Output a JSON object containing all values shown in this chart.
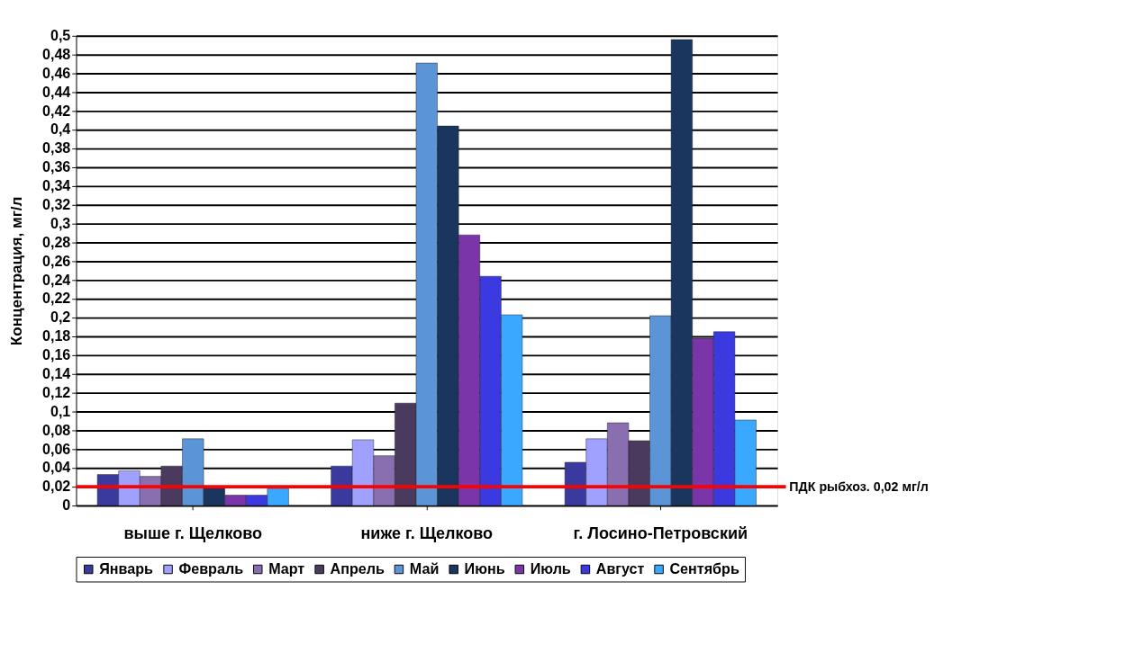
{
  "chart_data": {
    "type": "bar",
    "ylabel": "Концентрация, мг/л",
    "categories": [
      "выше г. Щелково",
      "ниже г. Щелково",
      "г. Лосино-Петровский"
    ],
    "series": [
      {
        "name": "Январь",
        "color": "#3a3a9e",
        "values": [
          0.033,
          0.042,
          0.046
        ]
      },
      {
        "name": "Февраль",
        "color": "#a0a0ff",
        "values": [
          0.037,
          0.07,
          0.071
        ]
      },
      {
        "name": "Март",
        "color": "#8a6fb0",
        "values": [
          0.031,
          0.053,
          0.088
        ]
      },
      {
        "name": "Апрель",
        "color": "#4a3a5e",
        "values": [
          0.042,
          0.109,
          0.069
        ]
      },
      {
        "name": "Май",
        "color": "#5b95d8",
        "values": [
          0.071,
          0.471,
          0.202
        ]
      },
      {
        "name": "Июнь",
        "color": "#1a365e",
        "values": [
          0.02,
          0.404,
          0.496
        ]
      },
      {
        "name": "Июль",
        "color": "#7a35a8",
        "values": [
          0.011,
          0.288,
          0.178
        ]
      },
      {
        "name": "Август",
        "color": "#3a3ae0",
        "values": [
          0.011,
          0.244,
          0.185
        ]
      },
      {
        "name": "Сентябрь",
        "color": "#3aa8ff",
        "values": [
          0.018,
          0.203,
          0.091
        ]
      }
    ],
    "ylim": [
      0,
      0.5
    ],
    "yticks": [
      0,
      {
        "value": 0.02,
        "label": "0,02"
      },
      {
        "value": 0.04,
        "label": "0,04"
      },
      {
        "value": 0.06,
        "label": "0,06"
      },
      {
        "value": 0.08,
        "label": "0,08"
      },
      {
        "value": 0.1,
        "label": "0,1"
      },
      {
        "value": 0.12,
        "label": "0,12"
      },
      {
        "value": 0.14,
        "label": "0,14"
      },
      {
        "value": 0.16,
        "label": "0,16"
      },
      {
        "value": 0.18,
        "label": "0,18"
      },
      {
        "value": 0.2,
        "label": "0,2"
      },
      {
        "value": 0.22,
        "label": "0,22"
      },
      {
        "value": 0.24,
        "label": "0,24"
      },
      {
        "value": 0.26,
        "label": "0,26"
      },
      {
        "value": 0.28,
        "label": "0,28"
      },
      {
        "value": 0.3,
        "label": "0,3"
      },
      {
        "value": 0.32,
        "label": "0,32"
      },
      {
        "value": 0.34,
        "label": "0,34"
      },
      {
        "value": 0.36,
        "label": "0,36"
      },
      {
        "value": 0.38,
        "label": "0,38"
      },
      {
        "value": 0.4,
        "label": "0,4"
      },
      {
        "value": 0.42,
        "label": "0,42"
      },
      {
        "value": 0.44,
        "label": "0,44"
      },
      {
        "value": 0.46,
        "label": "0,46"
      },
      {
        "value": 0.48,
        "label": "0,48"
      },
      {
        "value": 0.5,
        "label": "0,5"
      }
    ],
    "ref_lines": [
      {
        "axis": "y",
        "value": 0.02,
        "label": "ПДК рыбхоз. 0,02 мг/л",
        "color": "#ff0000"
      }
    ],
    "grid": "y",
    "legend": "bottom"
  }
}
